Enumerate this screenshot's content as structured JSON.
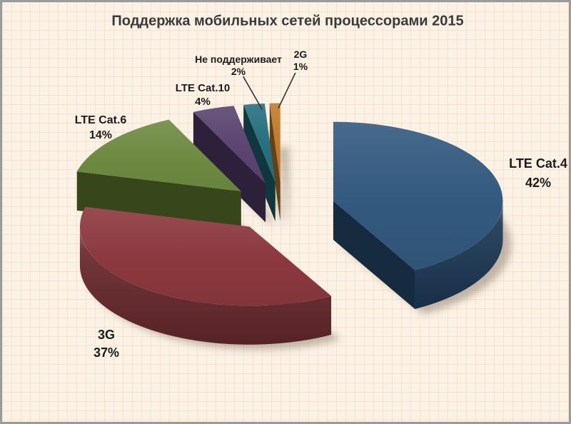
{
  "chart_data": {
    "type": "pie",
    "title": "Поддержка мобильных сетей процессорами 2015",
    "style": "3d-exploded",
    "legend": "none",
    "label_style": "outside, name + percent",
    "direction": "clockwise",
    "start_angle_deg": 0,
    "explode_pct": 31,
    "slices": [
      {
        "label": "LTE Cat.4",
        "value": 42,
        "pct_label": "42%",
        "color": "#33597F",
        "side": "#1E3A57"
      },
      {
        "label": "3G",
        "value": 37,
        "pct_label": "37%",
        "color": "#8B383E",
        "side": "#6B2A2F"
      },
      {
        "label": "LTE Cat.6",
        "value": 14,
        "pct_label": "14%",
        "color": "#6E8A41",
        "side": "#4A5F25"
      },
      {
        "label": "LTE Cat.10",
        "value": 4,
        "pct_label": "4%",
        "color": "#5B4470",
        "side": "#3B2B4E"
      },
      {
        "label": "Не поддерживает",
        "value": 2,
        "pct_label": "2%",
        "color": "#26707F",
        "side": "#174A54"
      },
      {
        "label": "2G",
        "value": 1,
        "pct_label": "1%",
        "color": "#BF7A2D",
        "side": "#8A5719"
      }
    ]
  },
  "colors": {
    "background": "#FBF1E4",
    "grid": "#E2C6AC",
    "border": "#9B9B9B",
    "title_text": "#3A3A3A",
    "label_text": "#1C1C1C",
    "leader_line": "#333333",
    "shadow": "#8A796B"
  }
}
